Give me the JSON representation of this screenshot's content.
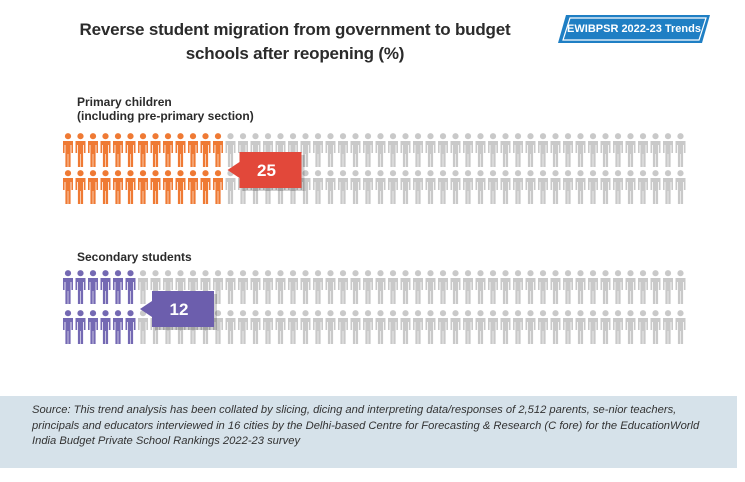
{
  "title_line1": "Reverse student migration from government to budget",
  "title_line2": "schools after reopening (%)",
  "badge": "EWIBPSR 2022-23 Trends",
  "colors": {
    "primary_figure": "#ef7a34",
    "secondary_figure": "#7469b3",
    "inactive_figure": "#c9c9c9",
    "primary_callout": "#e2483a",
    "secondary_callout": "#6c5ead",
    "badge_bg": "#1f7fc4",
    "source_bg": "#d6e2ea"
  },
  "chart_data": {
    "type": "pictogram",
    "total_per_group": 100,
    "series": [
      {
        "name": "Primary children\n(including pre-primary section)",
        "value": 25
      },
      {
        "name": "Secondary students",
        "value": 12
      }
    ]
  },
  "groups": [
    {
      "label_line1": "Primary children",
      "label_line2": "(including pre-primary section)",
      "value_label": "25"
    },
    {
      "label_line1": "Secondary students",
      "label_line2": "",
      "value_label": "12"
    }
  ],
  "source": "Source: This trend analysis has been collated by slicing, dicing and interpreting data/responses of 2,512 parents, se-nior teachers, principals and educators interviewed in 16 cities by the Delhi-based Centre for Forecasting & Research (C fore) for the EducationWorld India Budget Private School Rankings 2022-23 survey"
}
